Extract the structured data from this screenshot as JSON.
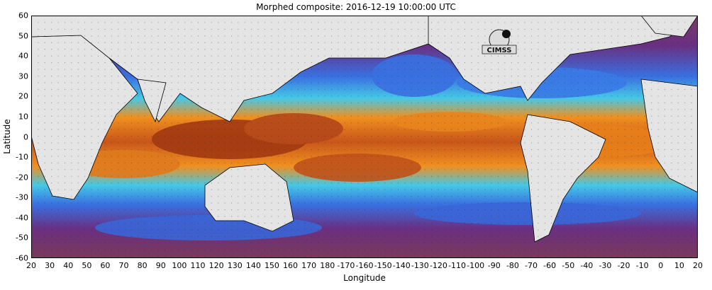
{
  "title": "Morphed composite: 2016-12-19 10:00:00 UTC",
  "map": {
    "xlabel": "Longitude",
    "ylabel": "Latitude",
    "x_ticks": [
      "20",
      "30",
      "40",
      "50",
      "60",
      "70",
      "80",
      "90",
      "100",
      "110",
      "120",
      "130",
      "140",
      "150",
      "160",
      "170",
      "180",
      "-170",
      "-160",
      "-150",
      "-140",
      "-130",
      "-120",
      "-110",
      "-100",
      "-90",
      "-80",
      "-70",
      "-60",
      "-50",
      "-40",
      "-30",
      "-20",
      "-10",
      "0",
      "10",
      "20"
    ],
    "y_ticks": [
      "60",
      "50",
      "40",
      "30",
      "20",
      "10",
      "0",
      "-10",
      "-20",
      "-30",
      "-40",
      "-50",
      "-60"
    ],
    "logo_text": "CIMSS",
    "colors": {
      "dry": "#6b2a7a",
      "low": "#2a6fe0",
      "mid": "#39c0e6",
      "moist": "#ef8a1a",
      "very_moist": "#8a2a10",
      "land": "#e4e4e4",
      "brown_background": "#8a4a3a"
    }
  }
}
